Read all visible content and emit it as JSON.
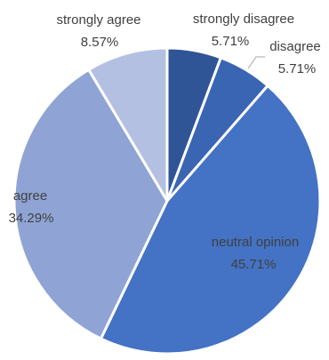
{
  "chart_data": {
    "type": "pie",
    "title": "",
    "slices": [
      {
        "label": "strongly disagree",
        "value": 5.71,
        "value_label": "5.71%",
        "color": "#2f5597"
      },
      {
        "label": "disagree",
        "value": 5.71,
        "value_label": "5.71%",
        "color": "#3a65b3"
      },
      {
        "label": "neutral opinion",
        "value": 45.71,
        "value_label": "45.71%",
        "color": "#4472c4"
      },
      {
        "label": "agree",
        "value": 34.29,
        "value_label": "34.29%",
        "color": "#8fa4d4"
      },
      {
        "label": "strongly agree",
        "value": 8.57,
        "value_label": "8.57%",
        "color": "#b4c0e2"
      }
    ],
    "start_angle": "12 o'clock",
    "direction": "clockwise",
    "label_placement": {
      "strongly disagree": "outside",
      "disagree": "outside-with-leader",
      "neutral opinion": "inside",
      "agree": "inside",
      "strongly agree": "outside"
    },
    "slice_border_color": "#ffffff",
    "text_color": "#404040",
    "legend": "none"
  }
}
